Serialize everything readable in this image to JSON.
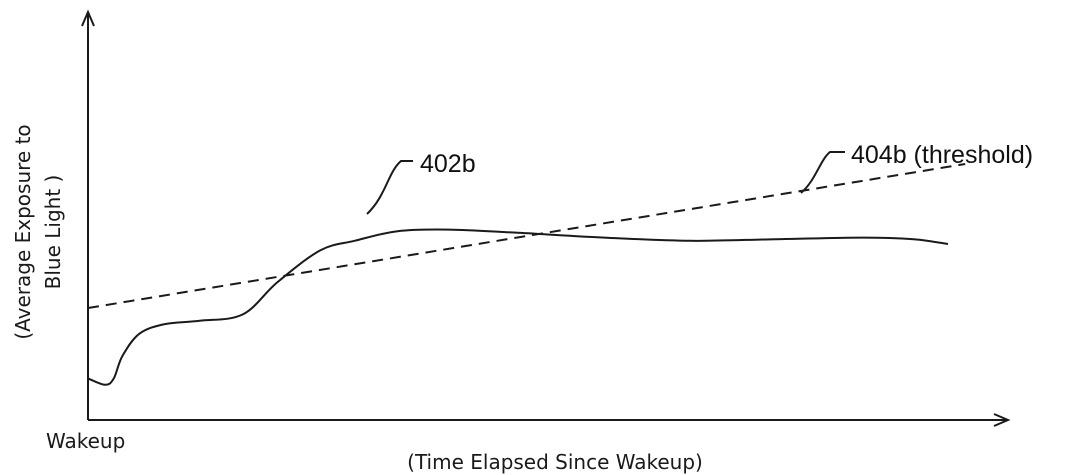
{
  "chart_data": {
    "type": "line",
    "title": "",
    "xlabel": "(Time Elapsed Since Wakeup)",
    "ylabel_lines": [
      "(Average Exposure to",
      "Blue Light )"
    ],
    "x_origin_label": "Wakeup",
    "grid": false,
    "xlim": [
      0,
      100
    ],
    "ylim": [
      0,
      100
    ],
    "series": [
      {
        "name": "402b",
        "style": "solid",
        "x": [
          0,
          2,
          3,
          4,
          6,
          9,
          13,
          18,
          22,
          27,
          31,
          36,
          42,
          50,
          60,
          70,
          80,
          90,
          96,
          100
        ],
        "y": [
          13,
          11,
          13,
          20,
          27,
          30,
          31,
          33,
          43,
          53,
          56,
          59,
          59.5,
          58.5,
          57,
          56,
          56.5,
          57,
          56.5,
          55
        ]
      },
      {
        "name": "404b (threshold)",
        "style": "dashed",
        "x": [
          0,
          102
        ],
        "y": [
          35,
          80
        ]
      }
    ]
  },
  "colors": {
    "line": "#1a1a1a",
    "axis": "#1a1a1a",
    "background": "#ffffff"
  }
}
